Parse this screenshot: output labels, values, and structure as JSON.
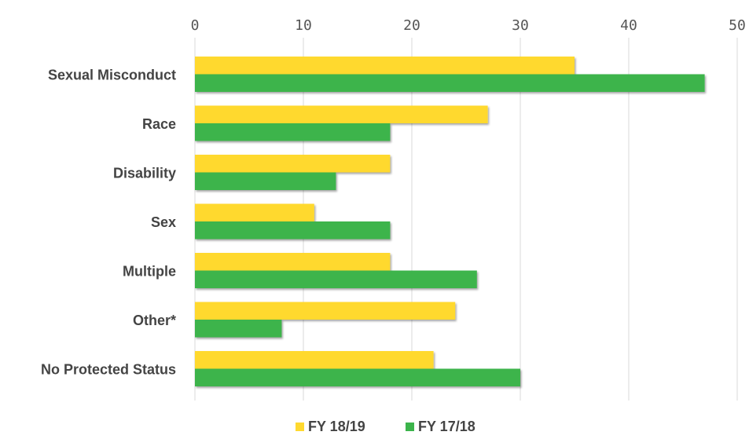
{
  "chart_data": {
    "type": "bar",
    "orientation": "horizontal",
    "categories": [
      "Sexual Misconduct",
      "Race",
      "Disability",
      "Sex",
      "Multiple",
      "Other*",
      "No Protected Status"
    ],
    "series": [
      {
        "name": "FY 18/19",
        "color": "#ffd92f",
        "values": [
          35,
          27,
          18,
          11,
          18,
          24,
          22
        ]
      },
      {
        "name": "FY 17/18",
        "color": "#3cb44b",
        "values": [
          47,
          18,
          13,
          18,
          26,
          8,
          30
        ]
      }
    ],
    "x_ticks": [
      "0",
      "10",
      "20",
      "30",
      "40",
      "50"
    ],
    "xlim": [
      0,
      50
    ],
    "x_axis_position": "top",
    "grid": true,
    "legend": {
      "position": "bottom-center"
    }
  }
}
